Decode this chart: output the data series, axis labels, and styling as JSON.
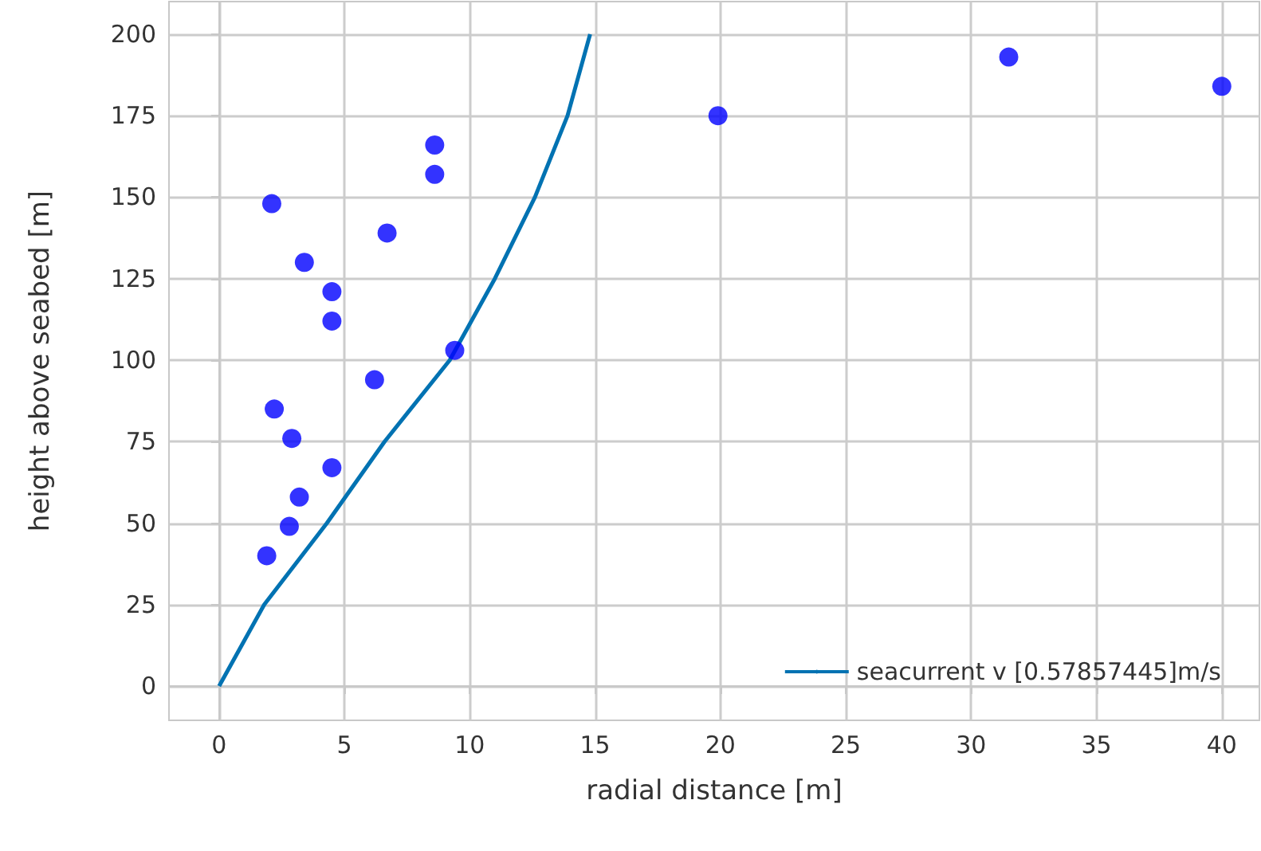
{
  "chart_data": {
    "type": "scatter",
    "xlabel": "radial distance [m]",
    "ylabel": "height above seabed [m]",
    "xlim": [
      -2,
      41.5
    ],
    "ylim": [
      -10.5,
      210
    ],
    "xticks": [
      0,
      5,
      10,
      15,
      20,
      25,
      30,
      35,
      40
    ],
    "yticks": [
      0,
      25,
      50,
      75,
      100,
      125,
      150,
      175,
      200
    ],
    "grid": true,
    "legend": "bottom right",
    "series": [
      {
        "type": "line",
        "name": "seacurrent v [0.57857445]m/s",
        "color": "#0072b2",
        "marker": "none",
        "line_style": "solid",
        "x": [
          0,
          1.8,
          4.3,
          6.6,
          9.2,
          11.0,
          12.6,
          13.9,
          14.8
        ],
        "values": [
          0,
          25,
          50,
          75,
          100,
          125,
          150,
          175,
          200
        ]
      },
      {
        "color": "#0000ff",
        "marker": "circle",
        "x": [
          1.9,
          2.8,
          3.2,
          4.5,
          2.9,
          2.2,
          6.2,
          9.4,
          4.5,
          4.5,
          3.4,
          6.7,
          2.1,
          8.6,
          8.6,
          19.9,
          31.5,
          40
        ],
        "values": [
          40,
          49,
          58,
          67,
          76,
          85,
          94,
          103,
          112,
          121,
          130,
          139,
          148,
          157,
          166,
          175,
          193,
          184
        ]
      }
    ]
  }
}
